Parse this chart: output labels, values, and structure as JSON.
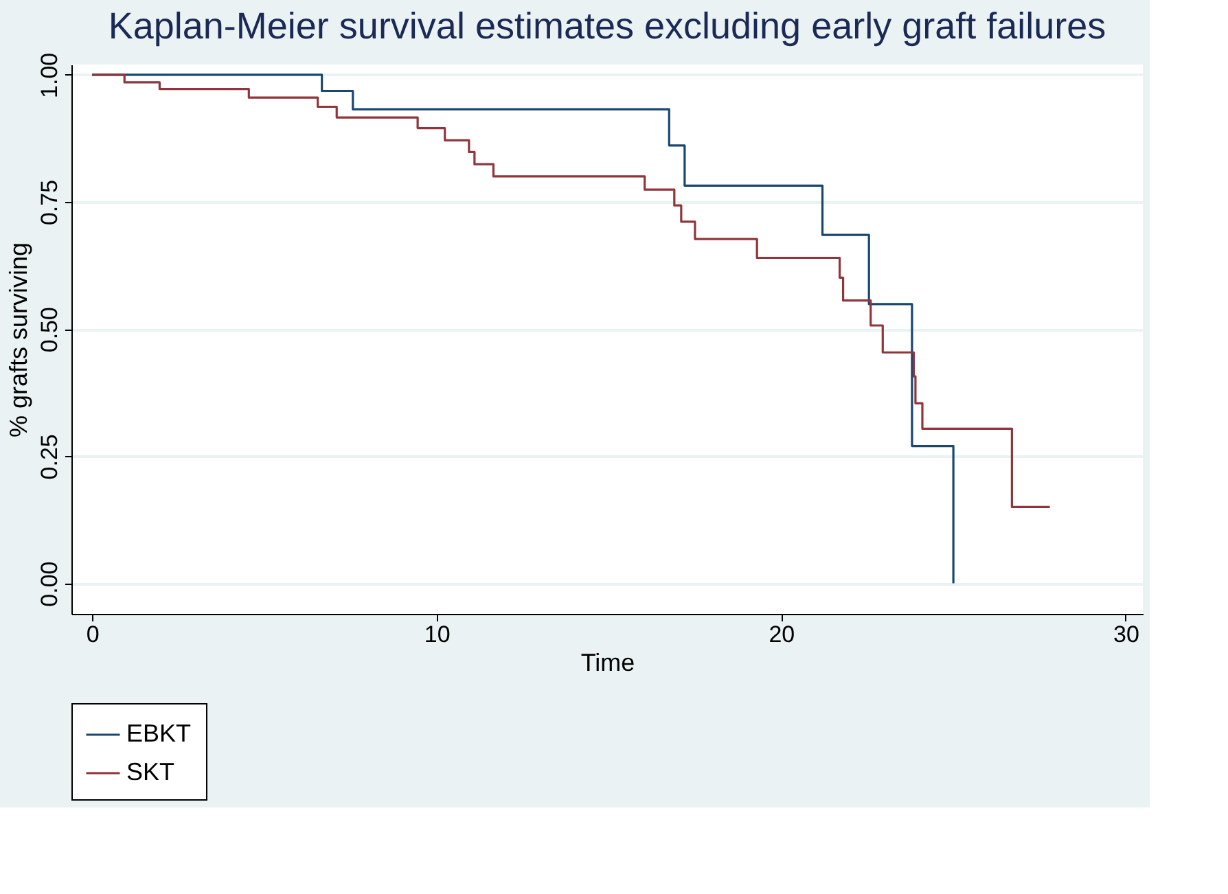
{
  "chart_data": {
    "type": "step",
    "title": "Kaplan-Meier survival estimates excluding early graft failures",
    "xlabel": "Time",
    "ylabel": "% grafts surviving",
    "xlim": [
      -0.6,
      30.5
    ],
    "xticks": [
      0,
      10,
      20,
      30
    ],
    "ylim": [
      -0.06,
      1.02
    ],
    "yticks": [
      {
        "value": 0,
        "label": "0.00"
      },
      {
        "value": 0.25,
        "label": "0.25"
      },
      {
        "value": 0.5,
        "label": "0.50"
      },
      {
        "value": 0.75,
        "label": "0.75"
      },
      {
        "value": 1,
        "label": "1.00"
      }
    ],
    "grid": "y",
    "legend": "bottom",
    "line_style": "solid",
    "marker": "none",
    "series": [
      {
        "name": "EBKT",
        "color": "#1a476f",
        "x": [
          0,
          6.67,
          7.57,
          16.75,
          17.2,
          21.2,
          22.55,
          23.8,
          25.0
        ],
        "values": [
          1.0,
          0.968,
          0.932,
          0.861,
          0.782,
          0.685,
          0.549,
          0.27,
          0.0
        ]
      },
      {
        "name": "SKT",
        "color": "#90353b",
        "x": [
          0,
          0.94,
          1.96,
          4.55,
          6.55,
          7.1,
          9.45,
          10.24,
          10.94,
          11.1,
          11.65,
          16.04,
          16.9,
          17.1,
          17.5,
          19.3,
          21.7,
          21.8,
          22.6,
          22.95,
          23.85,
          23.9,
          24.1,
          26.7,
          27.8
        ],
        "values": [
          1.0,
          0.985,
          0.972,
          0.955,
          0.937,
          0.916,
          0.895,
          0.871,
          0.848,
          0.824,
          0.8,
          0.774,
          0.743,
          0.711,
          0.677,
          0.64,
          0.601,
          0.556,
          0.507,
          0.454,
          0.407,
          0.354,
          0.304,
          0.15,
          0.15
        ]
      }
    ]
  }
}
